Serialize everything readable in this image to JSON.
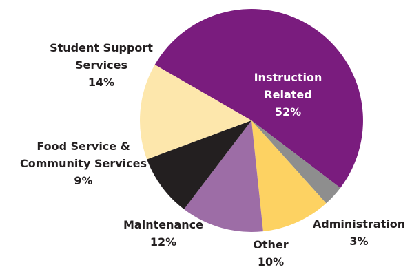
{
  "chart_data": {
    "type": "pie",
    "slices": [
      {
        "name": "Instruction Related",
        "value": 52,
        "label_lines": [
          "Instruction",
          "Related",
          "52%"
        ],
        "color": "#7a1c7e",
        "label_color": "#ffffff"
      },
      {
        "name": "Administration",
        "value": 3,
        "label_lines": [
          "Administration",
          "3%"
        ],
        "color": "#8e8e8e",
        "label_color": "#231f20"
      },
      {
        "name": "Other",
        "value": 10,
        "label_lines": [
          "Other",
          "10%"
        ],
        "color": "#fdd262",
        "label_color": "#231f20"
      },
      {
        "name": "Maintenance",
        "value": 12,
        "label_lines": [
          "Maintenance",
          "12%"
        ],
        "color": "#9d6da6",
        "label_color": "#231f20"
      },
      {
        "name": "Food Service & Community Services",
        "value": 9,
        "label_lines": [
          "Food Service &",
          "Community Services",
          "9%"
        ],
        "color": "#231f20",
        "label_color": "#231f20"
      },
      {
        "name": "Student Support Services",
        "value": 14,
        "label_lines": [
          "Student Support",
          "Services",
          "14%"
        ],
        "color": "#fde7ac",
        "label_color": "#231f20"
      }
    ]
  }
}
